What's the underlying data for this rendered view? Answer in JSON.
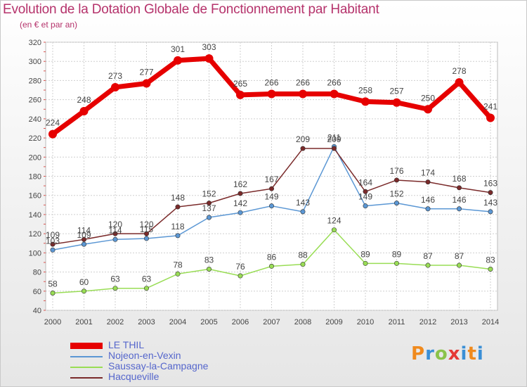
{
  "title": "Evolution de la Dotation Globale de Fonctionnement par Habitant",
  "subtitle": "(en € et par an)",
  "brand": {
    "text": "Proxiti"
  },
  "chart_data": {
    "type": "line",
    "x": [
      "2000",
      "2001",
      "2002",
      "2003",
      "2004",
      "2005",
      "2006",
      "2007",
      "2008",
      "2009",
      "2010",
      "2011",
      "2012",
      "2013",
      "2014"
    ],
    "ylim": [
      40,
      320
    ],
    "yticks": [
      40,
      60,
      80,
      100,
      120,
      140,
      160,
      180,
      200,
      220,
      240,
      260,
      280,
      300,
      320
    ],
    "grid": true,
    "legend_position": "bottom-left",
    "series": [
      {
        "name": "LE THIL",
        "color": "#e60000",
        "values": [
          224,
          248,
          273,
          277,
          301,
          303,
          265,
          266,
          266,
          266,
          258,
          257,
          250,
          278,
          241
        ]
      },
      {
        "name": "Nojeon-en-Vexin",
        "color": "#5b97d4",
        "values": [
          103,
          109,
          114,
          115,
          118,
          137,
          142,
          149,
          143,
          211,
          149,
          152,
          146,
          146,
          143
        ]
      },
      {
        "name": "Saussay-la-Campagne",
        "color": "#99dd55",
        "values": [
          58,
          60,
          63,
          63,
          78,
          83,
          76,
          86,
          88,
          124,
          89,
          89,
          87,
          87,
          83
        ]
      },
      {
        "name": "Hacqueville",
        "color": "#7a2a2a",
        "values": [
          109,
          114,
          120,
          120,
          148,
          152,
          162,
          167,
          209,
          209,
          164,
          176,
          174,
          168,
          163
        ]
      }
    ]
  }
}
